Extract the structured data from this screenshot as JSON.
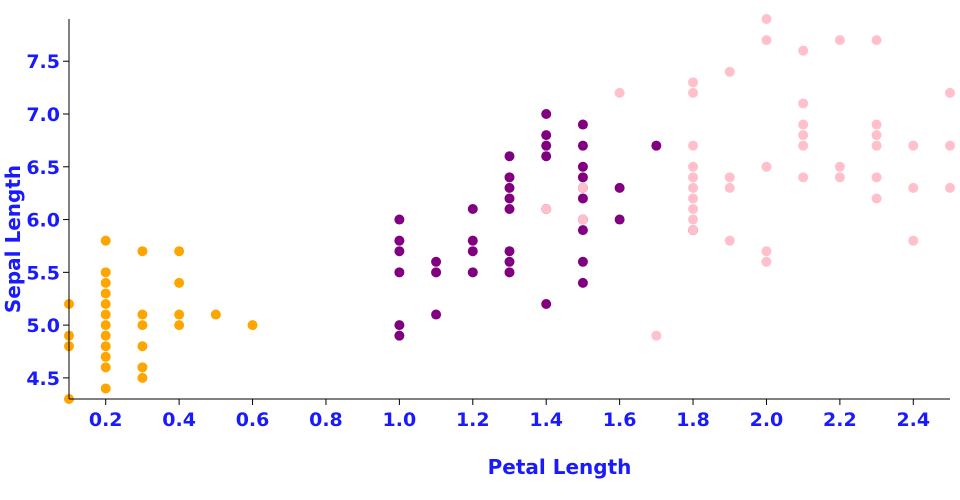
{
  "chart_data": {
    "type": "scatter",
    "xlabel": "Petal Length",
    "ylabel": "Sepal Length",
    "xlim": [
      0.1,
      2.5
    ],
    "ylim": [
      4.3,
      7.9
    ],
    "x_ticks": [
      "0.2",
      "0.4",
      "0.6",
      "0.8",
      "1.0",
      "1.2",
      "1.4",
      "1.6",
      "1.8",
      "2.0",
      "2.2",
      "2.4"
    ],
    "y_ticks": [
      "4.5",
      "5.0",
      "5.5",
      "6.0",
      "6.5",
      "7.0",
      "7.5"
    ],
    "grid": false,
    "legend": "none",
    "series": [
      {
        "color": "#ffa500",
        "points": [
          [
            0.1,
            4.3
          ],
          [
            0.1,
            4.8
          ],
          [
            0.1,
            4.9
          ],
          [
            0.1,
            5.2
          ],
          [
            0.2,
            4.4
          ],
          [
            0.2,
            4.6
          ],
          [
            0.2,
            4.7
          ],
          [
            0.2,
            4.8
          ],
          [
            0.2,
            4.9
          ],
          [
            0.2,
            5.0
          ],
          [
            0.2,
            5.1
          ],
          [
            0.2,
            5.2
          ],
          [
            0.2,
            5.3
          ],
          [
            0.2,
            5.4
          ],
          [
            0.2,
            5.5
          ],
          [
            0.2,
            5.8
          ],
          [
            0.3,
            4.5
          ],
          [
            0.3,
            4.6
          ],
          [
            0.3,
            4.8
          ],
          [
            0.3,
            5.0
          ],
          [
            0.3,
            5.1
          ],
          [
            0.3,
            5.7
          ],
          [
            0.4,
            5.0
          ],
          [
            0.4,
            5.1
          ],
          [
            0.4,
            5.4
          ],
          [
            0.4,
            5.7
          ],
          [
            0.5,
            5.1
          ],
          [
            0.6,
            5.0
          ]
        ]
      },
      {
        "color": "#800080",
        "points": [
          [
            1.0,
            4.9
          ],
          [
            1.0,
            5.0
          ],
          [
            1.0,
            5.5
          ],
          [
            1.0,
            5.7
          ],
          [
            1.0,
            5.8
          ],
          [
            1.0,
            6.0
          ],
          [
            1.1,
            5.1
          ],
          [
            1.1,
            5.5
          ],
          [
            1.1,
            5.6
          ],
          [
            1.2,
            5.5
          ],
          [
            1.2,
            5.7
          ],
          [
            1.2,
            5.8
          ],
          [
            1.2,
            6.1
          ],
          [
            1.3,
            5.5
          ],
          [
            1.3,
            5.6
          ],
          [
            1.3,
            5.7
          ],
          [
            1.3,
            6.1
          ],
          [
            1.3,
            6.2
          ],
          [
            1.3,
            6.3
          ],
          [
            1.3,
            6.4
          ],
          [
            1.3,
            6.6
          ],
          [
            1.4,
            5.2
          ],
          [
            1.4,
            6.1
          ],
          [
            1.4,
            6.6
          ],
          [
            1.4,
            6.7
          ],
          [
            1.4,
            6.8
          ],
          [
            1.4,
            7.0
          ],
          [
            1.5,
            5.4
          ],
          [
            1.5,
            5.6
          ],
          [
            1.5,
            5.9
          ],
          [
            1.5,
            6.0
          ],
          [
            1.5,
            6.2
          ],
          [
            1.5,
            6.3
          ],
          [
            1.5,
            6.4
          ],
          [
            1.5,
            6.5
          ],
          [
            1.5,
            6.7
          ],
          [
            1.5,
            6.9
          ],
          [
            1.6,
            6.0
          ],
          [
            1.6,
            6.3
          ],
          [
            1.7,
            6.7
          ],
          [
            1.8,
            5.9
          ]
        ]
      },
      {
        "color": "#ffc0cb",
        "points": [
          [
            1.4,
            6.1
          ],
          [
            1.5,
            6.0
          ],
          [
            1.5,
            6.3
          ],
          [
            1.6,
            7.2
          ],
          [
            1.7,
            4.9
          ],
          [
            1.8,
            5.9
          ],
          [
            1.8,
            6.0
          ],
          [
            1.8,
            6.1
          ],
          [
            1.8,
            6.2
          ],
          [
            1.8,
            6.3
          ],
          [
            1.8,
            6.4
          ],
          [
            1.8,
            6.5
          ],
          [
            1.8,
            6.7
          ],
          [
            1.8,
            7.2
          ],
          [
            1.8,
            7.3
          ],
          [
            1.9,
            5.8
          ],
          [
            1.9,
            6.3
          ],
          [
            1.9,
            6.4
          ],
          [
            1.9,
            7.4
          ],
          [
            2.0,
            5.6
          ],
          [
            2.0,
            5.7
          ],
          [
            2.0,
            6.5
          ],
          [
            2.0,
            7.7
          ],
          [
            2.0,
            7.9
          ],
          [
            2.1,
            6.4
          ],
          [
            2.1,
            6.7
          ],
          [
            2.1,
            6.8
          ],
          [
            2.1,
            6.9
          ],
          [
            2.1,
            7.1
          ],
          [
            2.1,
            7.6
          ],
          [
            2.2,
            6.4
          ],
          [
            2.2,
            6.5
          ],
          [
            2.2,
            7.7
          ],
          [
            2.3,
            6.2
          ],
          [
            2.3,
            6.4
          ],
          [
            2.3,
            6.7
          ],
          [
            2.3,
            6.8
          ],
          [
            2.3,
            6.9
          ],
          [
            2.3,
            7.7
          ],
          [
            2.4,
            5.8
          ],
          [
            2.4,
            6.3
          ],
          [
            2.4,
            6.7
          ],
          [
            2.5,
            6.3
          ],
          [
            2.5,
            6.7
          ],
          [
            2.5,
            7.2
          ]
        ]
      }
    ]
  }
}
